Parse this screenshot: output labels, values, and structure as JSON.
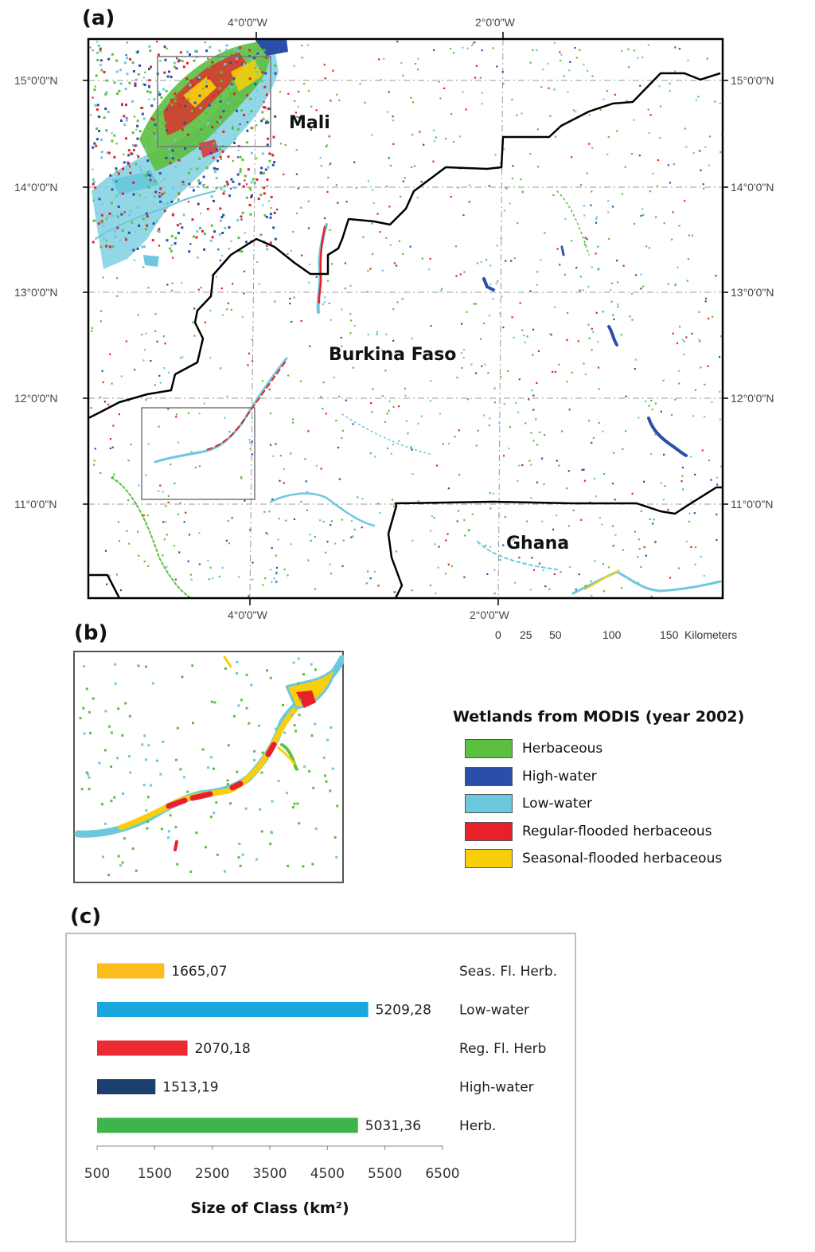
{
  "panel_a": {
    "letter": "(a)",
    "top_labels": [
      "4°0'0\"W",
      "2°0'0\"W"
    ],
    "bottom_labels": [
      "4°0'0\"W",
      "2°0'0\"W"
    ],
    "left_labels": [
      "15°0'0\"N",
      "14°0'0\"N",
      "13°0'0\"N",
      "12°0'0\"N",
      "11°0'0\"N"
    ],
    "right_labels": [
      "15°0'0\"N",
      "14°0'0\"N",
      "13°0'0\"N",
      "12°0'0\"N",
      "11°0'0\"N"
    ],
    "countries": {
      "mali": "Mali",
      "burkina": "Burkina Faso",
      "ghana": "Ghana"
    },
    "scale_bar": {
      "ticks": [
        "0",
        "25",
        "50",
        "100",
        "150"
      ],
      "unit": "Kilometers"
    }
  },
  "panel_b": {
    "letter": "(b)"
  },
  "legend": {
    "title": "Wetlands from MODIS (year 2002)",
    "items": [
      {
        "label": "Herbaceous",
        "color": "#5bbf3f"
      },
      {
        "label": "High-water",
        "color": "#2b4fa8"
      },
      {
        "label": "Low-water",
        "color": "#6cc8dc"
      },
      {
        "label": "Regular-flooded herbaceous",
        "color": "#e8202a"
      },
      {
        "label": "Seasonal-flooded herbaceous",
        "color": "#f9cf0b"
      }
    ]
  },
  "panel_c": {
    "letter": "(c)"
  },
  "chart_data": {
    "type": "bar",
    "orientation": "horizontal",
    "categories": [
      "Seas. Fl. Herb.",
      "Low-water",
      "Reg. Fl. Herb",
      "High-water",
      "Herb."
    ],
    "values": [
      1665.07,
      5209.28,
      2070.18,
      1513.19,
      5031.36
    ],
    "value_labels": [
      "1665,07",
      "5209,28",
      "2070,18",
      "1513,19",
      "5031,36"
    ],
    "colors": [
      "#fbbd1c",
      "#1aa7e0",
      "#ec2a34",
      "#1d3f6e",
      "#3db54a"
    ],
    "xlabel": "Size of Class (km²)",
    "xlim": [
      500,
      6500
    ],
    "xticks": [
      "500",
      "1500",
      "2500",
      "3500",
      "4500",
      "5500",
      "6500"
    ],
    "grid": false,
    "category_labels_position": "right"
  }
}
